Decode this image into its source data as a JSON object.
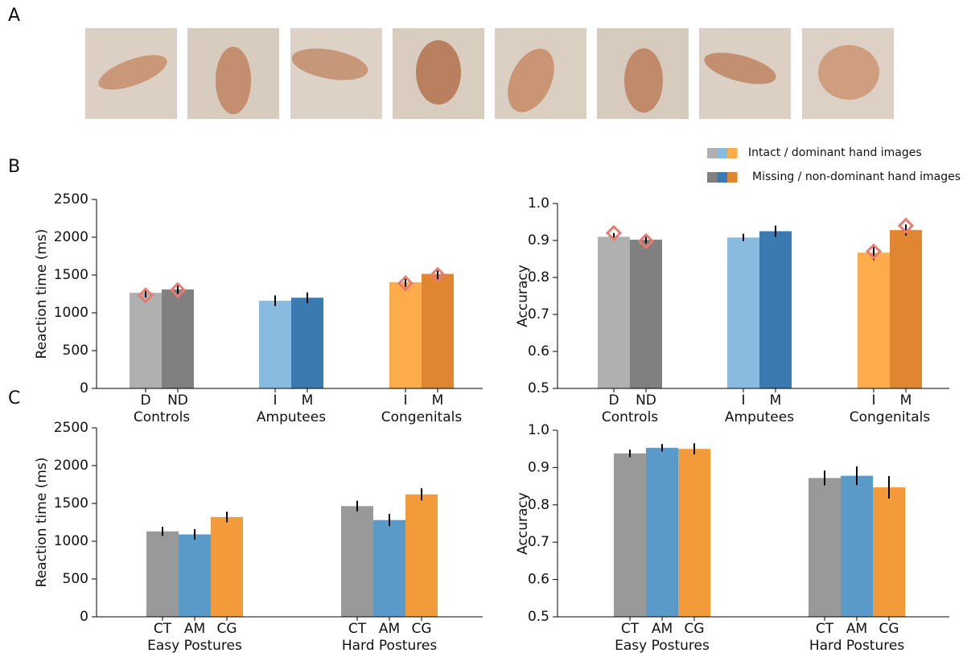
{
  "panel_labels": [
    "A",
    "B",
    "C"
  ],
  "legend": {
    "items": [
      {
        "label": "Intact / dominant hand images",
        "colors": [
          "#b0b0b0",
          "#88bbdd",
          "#fcac4a"
        ]
      },
      {
        "label": "Missing / non-dominant hand images",
        "colors": [
          "#808080",
          "#3a7ab0",
          "#e08530"
        ]
      }
    ]
  },
  "chart_data": [
    {
      "type": "bar",
      "ylabel": "Reaction time (ms)",
      "ylim": [
        0,
        2500
      ],
      "yticks": [
        0,
        500,
        1000,
        1500,
        2000,
        2500
      ],
      "marker_color": "#e87a70",
      "groups": [
        {
          "name": "Controls",
          "bars": [
            {
              "label": "D",
              "value": 1265,
              "error": 60,
              "marker": 1230,
              "color": "#b0b0b0"
            },
            {
              "label": "ND",
              "value": 1310,
              "error": 60,
              "marker": 1300,
              "color": "#808080"
            }
          ]
        },
        {
          "name": "Amputees",
          "bars": [
            {
              "label": "I",
              "value": 1160,
              "error": 70,
              "color": "#88bbdd"
            },
            {
              "label": "M",
              "value": 1200,
              "error": 70,
              "color": "#3a7ab0"
            }
          ]
        },
        {
          "name": "Congenitals",
          "bars": [
            {
              "label": "I",
              "value": 1405,
              "error": 60,
              "marker": 1390,
              "color": "#fcac4a"
            },
            {
              "label": "M",
              "value": 1515,
              "error": 70,
              "marker": 1500,
              "color": "#e08530"
            }
          ]
        }
      ]
    },
    {
      "type": "bar",
      "ylabel": "Accuracy",
      "ylim": [
        0.5,
        1
      ],
      "yticks": [
        0.5,
        0.6,
        0.7,
        0.8,
        0.9,
        {
          "value": 1,
          "label": "1.0"
        }
      ],
      "marker_color": "#e87a70",
      "groups": [
        {
          "name": "Controls",
          "bars": [
            {
              "label": "D",
              "value": 0.91,
              "error": 0.01,
              "marker": 0.92,
              "color": "#b0b0b0"
            },
            {
              "label": "ND",
              "value": 0.902,
              "error": 0.01,
              "marker": 0.898,
              "color": "#808080"
            }
          ]
        },
        {
          "name": "Amputees",
          "bars": [
            {
              "label": "I",
              "value": 0.908,
              "error": 0.01,
              "color": "#88bbdd"
            },
            {
              "label": "M",
              "value": 0.925,
              "error": 0.015,
              "color": "#3a7ab0"
            }
          ]
        },
        {
          "name": "Congenitals",
          "bars": [
            {
              "label": "I",
              "value": 0.867,
              "error": 0.02,
              "marker": 0.87,
              "color": "#fcac4a"
            },
            {
              "label": "M",
              "value": 0.928,
              "error": 0.015,
              "marker": 0.94,
              "color": "#e08530"
            }
          ]
        }
      ]
    },
    {
      "type": "bar",
      "ylabel": "Reaction time (ms)",
      "ylim": [
        0,
        2500
      ],
      "yticks": [
        0,
        500,
        1000,
        1500,
        2000,
        2500
      ],
      "groups": [
        {
          "name": "Easy Postures",
          "bars": [
            {
              "label": "CT",
              "value": 1130,
              "error": 60,
              "color": "#999999"
            },
            {
              "label": "AM",
              "value": 1090,
              "error": 70,
              "color": "#5a9ac8"
            },
            {
              "label": "CG",
              "value": 1320,
              "error": 70,
              "color": "#f39a3a"
            }
          ]
        },
        {
          "name": "Hard Postures",
          "bars": [
            {
              "label": "CT",
              "value": 1465,
              "error": 70,
              "color": "#999999"
            },
            {
              "label": "AM",
              "value": 1280,
              "error": 80,
              "color": "#5a9ac8"
            },
            {
              "label": "CG",
              "value": 1620,
              "error": 80,
              "color": "#f39a3a"
            }
          ]
        }
      ]
    },
    {
      "type": "bar",
      "ylabel": "Accuracy",
      "ylim": [
        0.5,
        1
      ],
      "yticks": [
        0.5,
        0.6,
        0.7,
        0.8,
        0.9,
        {
          "value": 1,
          "label": "1.0"
        }
      ],
      "groups": [
        {
          "name": "Easy Postures",
          "bars": [
            {
              "label": "CT",
              "value": 0.938,
              "error": 0.01,
              "color": "#999999"
            },
            {
              "label": "AM",
              "value": 0.953,
              "error": 0.01,
              "color": "#5a9ac8"
            },
            {
              "label": "CG",
              "value": 0.95,
              "error": 0.015,
              "color": "#f39a3a"
            }
          ]
        },
        {
          "name": "Hard Postures",
          "bars": [
            {
              "label": "CT",
              "value": 0.872,
              "error": 0.02,
              "color": "#999999"
            },
            {
              "label": "AM",
              "value": 0.878,
              "error": 0.025,
              "color": "#5a9ac8"
            },
            {
              "label": "CG",
              "value": 0.847,
              "error": 0.03,
              "color": "#f39a3a"
            }
          ]
        }
      ]
    }
  ]
}
